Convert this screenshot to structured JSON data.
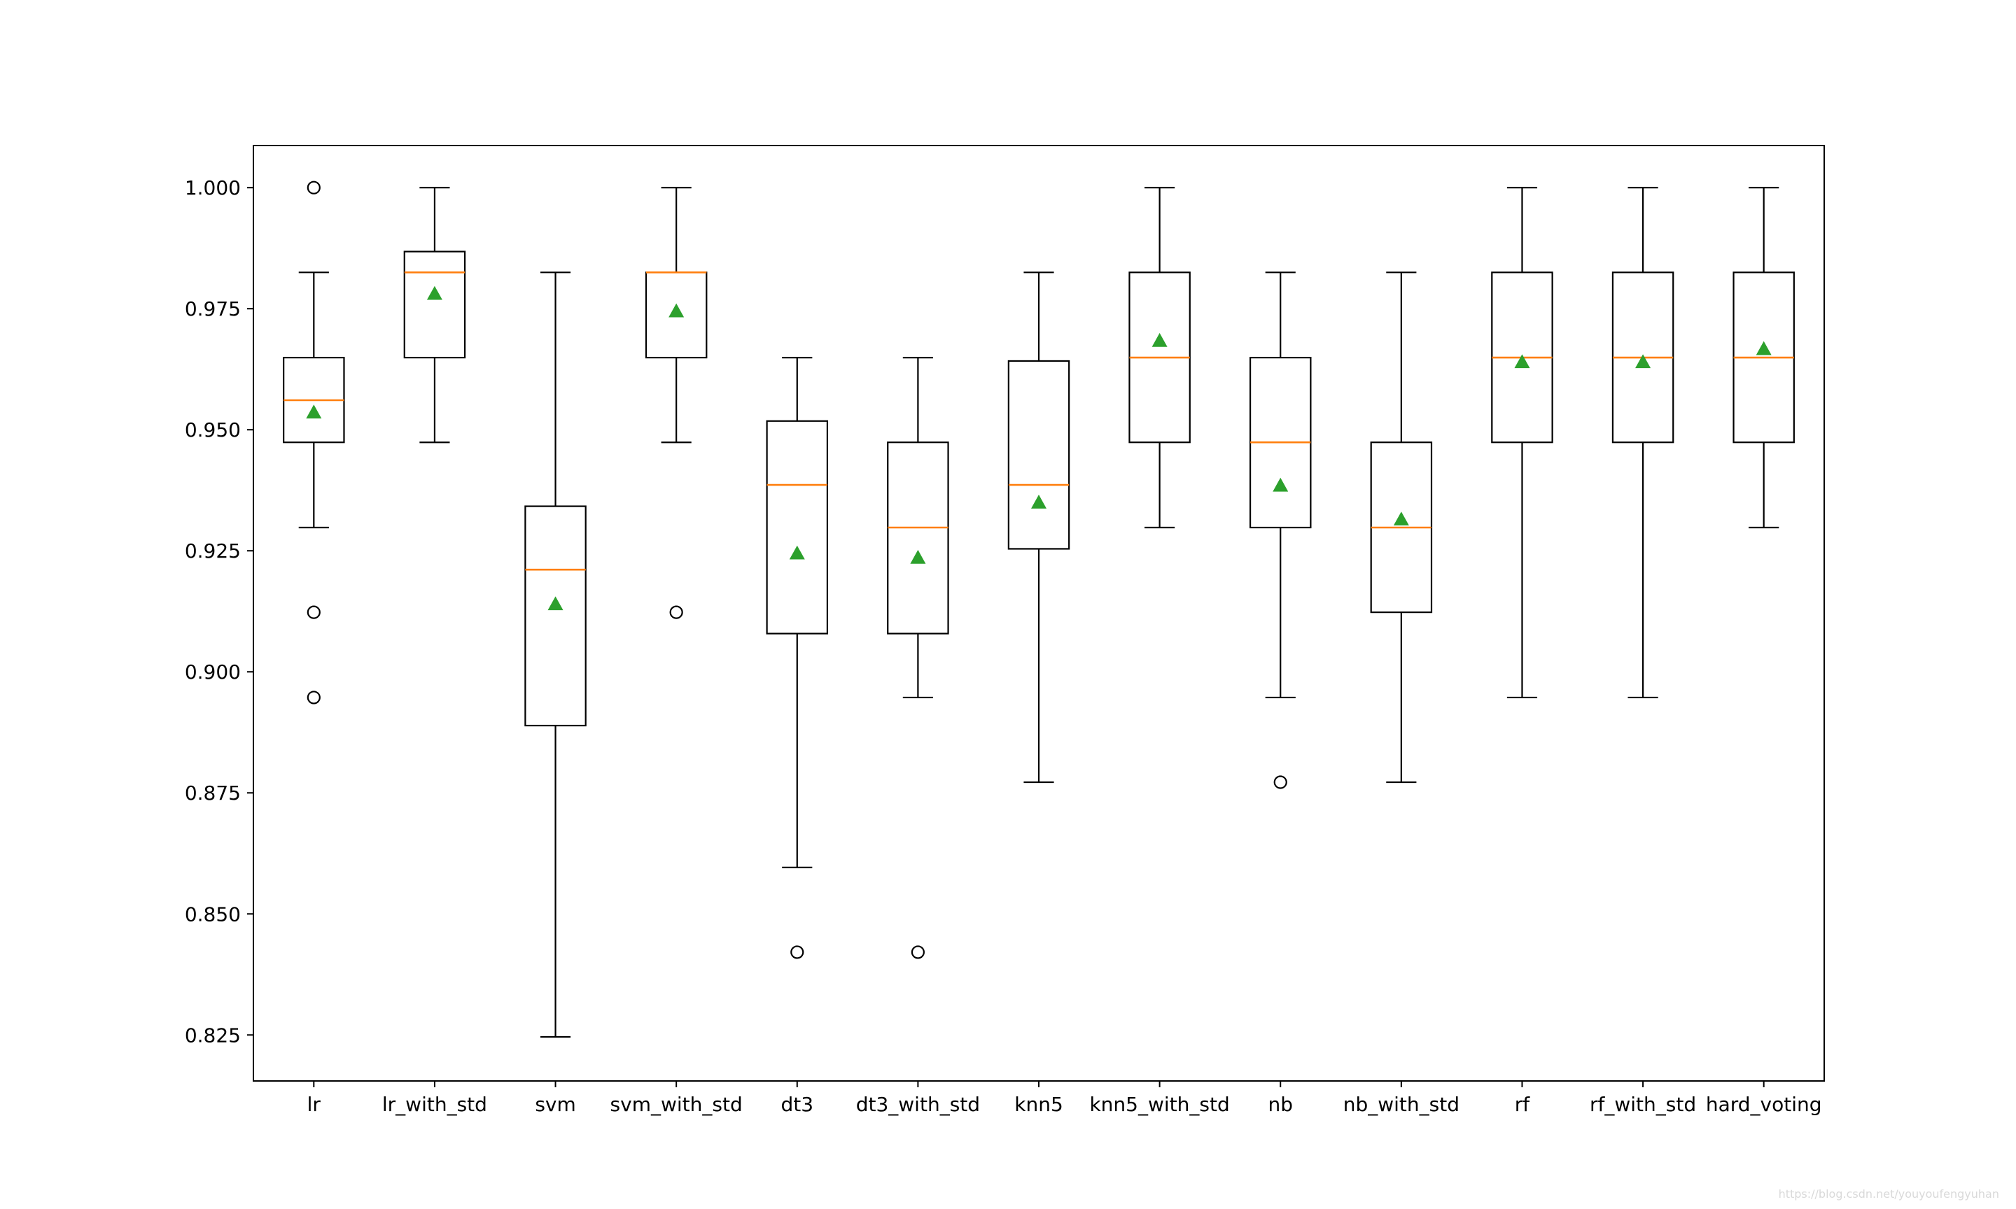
{
  "chart_data": {
    "type": "box",
    "title": "",
    "xlabel": "",
    "ylabel": "",
    "ylim": [
      0.8155,
      1.0087
    ],
    "yticks": [
      0.825,
      0.85,
      0.875,
      0.9,
      0.925,
      0.95,
      0.975,
      1.0
    ],
    "ytick_labels": [
      "0.825",
      "0.850",
      "0.875",
      "0.900",
      "0.925",
      "0.950",
      "0.975",
      "1.000"
    ],
    "grid": false,
    "colors": {
      "box": "#000000",
      "median": "#ff7f0e",
      "mean": "#2ca02c"
    },
    "categories": [
      "lr",
      "lr_with_std",
      "svm",
      "svm_with_std",
      "dt3",
      "dt3_with_std",
      "knn5",
      "knn5_with_std",
      "nb",
      "nb_with_std",
      "rf",
      "rf_with_std",
      "hard_voting"
    ],
    "boxes": [
      {
        "name": "lr",
        "whisker_low": 0.9298,
        "q1": 0.9474,
        "median": 0.9561,
        "q3": 0.9649,
        "whisker_high": 0.9825,
        "mean": 0.9536,
        "outliers": [
          1.0,
          0.9123,
          0.8947
        ]
      },
      {
        "name": "lr_with_std",
        "whisker_low": 0.9474,
        "q1": 0.9649,
        "median": 0.9825,
        "q3": 0.9868,
        "whisker_high": 1.0,
        "mean": 0.9781,
        "outliers": []
      },
      {
        "name": "svm",
        "whisker_low": 0.8246,
        "q1": 0.8889,
        "median": 0.9211,
        "q3": 0.9342,
        "whisker_high": 0.9825,
        "mean": 0.914,
        "outliers": []
      },
      {
        "name": "svm_with_std",
        "whisker_low": 0.9474,
        "q1": 0.9649,
        "median": 0.9825,
        "q3": 0.9825,
        "whisker_high": 1.0,
        "mean": 0.9745,
        "outliers": [
          0.9123
        ]
      },
      {
        "name": "dt3",
        "whisker_low": 0.8596,
        "q1": 0.9079,
        "median": 0.9386,
        "q3": 0.9518,
        "whisker_high": 0.9649,
        "mean": 0.9245,
        "outliers": [
          0.8421
        ]
      },
      {
        "name": "dt3_with_std",
        "whisker_low": 0.8947,
        "q1": 0.9079,
        "median": 0.9298,
        "q3": 0.9474,
        "whisker_high": 0.9649,
        "mean": 0.9236,
        "outliers": [
          0.8421
        ]
      },
      {
        "name": "knn5",
        "whisker_low": 0.8772,
        "q1": 0.9254,
        "median": 0.9386,
        "q3": 0.9642,
        "whisker_high": 0.9825,
        "mean": 0.935,
        "outliers": []
      },
      {
        "name": "knn5_with_std",
        "whisker_low": 0.9298,
        "q1": 0.9474,
        "median": 0.9649,
        "q3": 0.9825,
        "whisker_high": 1.0,
        "mean": 0.9684,
        "outliers": []
      },
      {
        "name": "nb",
        "whisker_low": 0.8947,
        "q1": 0.9298,
        "median": 0.9474,
        "q3": 0.9649,
        "whisker_high": 0.9825,
        "mean": 0.9385,
        "outliers": [
          0.8772
        ]
      },
      {
        "name": "nb_with_std",
        "whisker_low": 0.8772,
        "q1": 0.9123,
        "median": 0.9298,
        "q3": 0.9474,
        "whisker_high": 0.9825,
        "mean": 0.9315,
        "outliers": []
      },
      {
        "name": "rf",
        "whisker_low": 0.8947,
        "q1": 0.9474,
        "median": 0.9649,
        "q3": 0.9825,
        "whisker_high": 1.0,
        "mean": 0.964,
        "outliers": []
      },
      {
        "name": "rf_with_std",
        "whisker_low": 0.8947,
        "q1": 0.9474,
        "median": 0.9649,
        "q3": 0.9825,
        "whisker_high": 1.0,
        "mean": 0.964,
        "outliers": []
      },
      {
        "name": "hard_voting",
        "whisker_low": 0.9298,
        "q1": 0.9474,
        "median": 0.9649,
        "q3": 0.9825,
        "whisker_high": 1.0,
        "mean": 0.9667,
        "outliers": []
      }
    ]
  },
  "watermark": "https://blog.csdn.net/youyoufengyuhan"
}
